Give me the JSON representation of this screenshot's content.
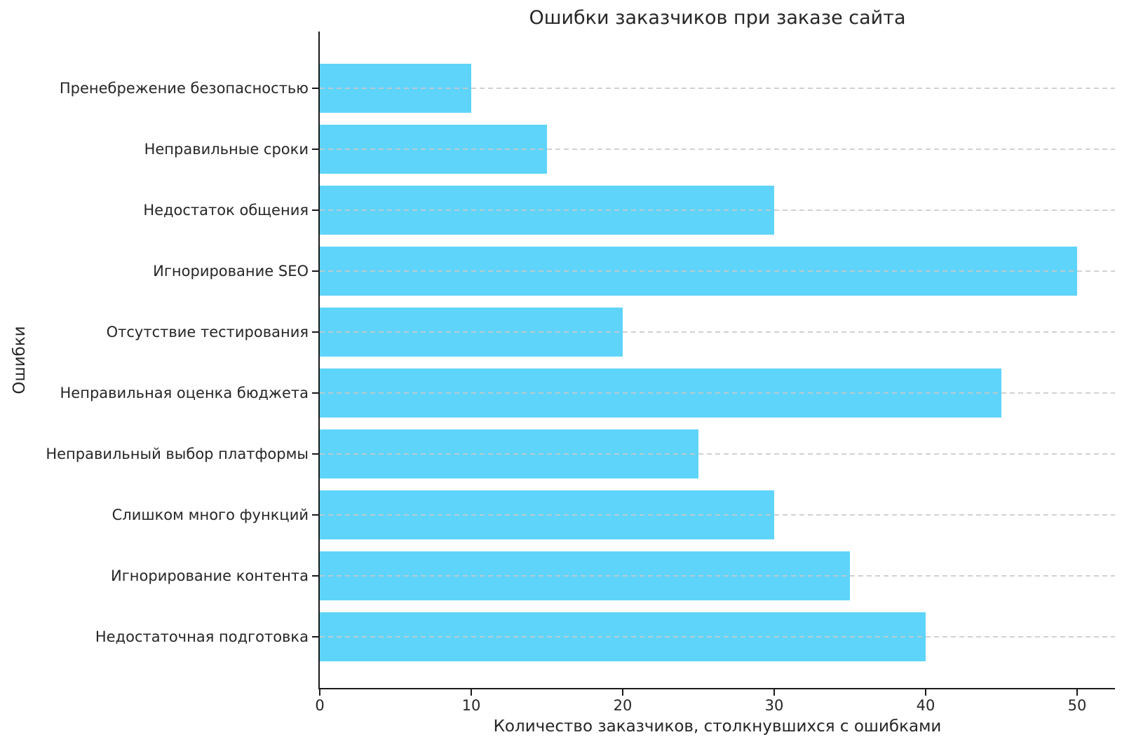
{
  "chart_data": {
    "type": "bar",
    "orientation": "horizontal",
    "title": "Ошибки заказчиков при заказе сайта",
    "xlabel": "Количество заказчиков, столкнувшихся с ошибками",
    "ylabel": "Ошибки",
    "categories": [
      "Пренебрежение безопасностью",
      "Неправильные сроки",
      "Недостаток общения",
      "Игнорирование SEO",
      "Отсутствие тестирования",
      "Неправильная оценка бюджета",
      "Неправильный выбор платформы",
      "Слишком много функций",
      "Игнорирование контента",
      "Недостаточная подготовка"
    ],
    "values": [
      10,
      15,
      30,
      50,
      20,
      45,
      25,
      30,
      35,
      40
    ],
    "xticks": [
      0,
      10,
      20,
      30,
      40,
      50
    ],
    "xlim": [
      0,
      52.5
    ],
    "grid": "horizontal-dashed",
    "legend": "none",
    "bar_color": "#5fd4fa",
    "grid_color": "#c9c9c9",
    "axis_color": "#1a1a1a",
    "text_color": "#262626"
  }
}
